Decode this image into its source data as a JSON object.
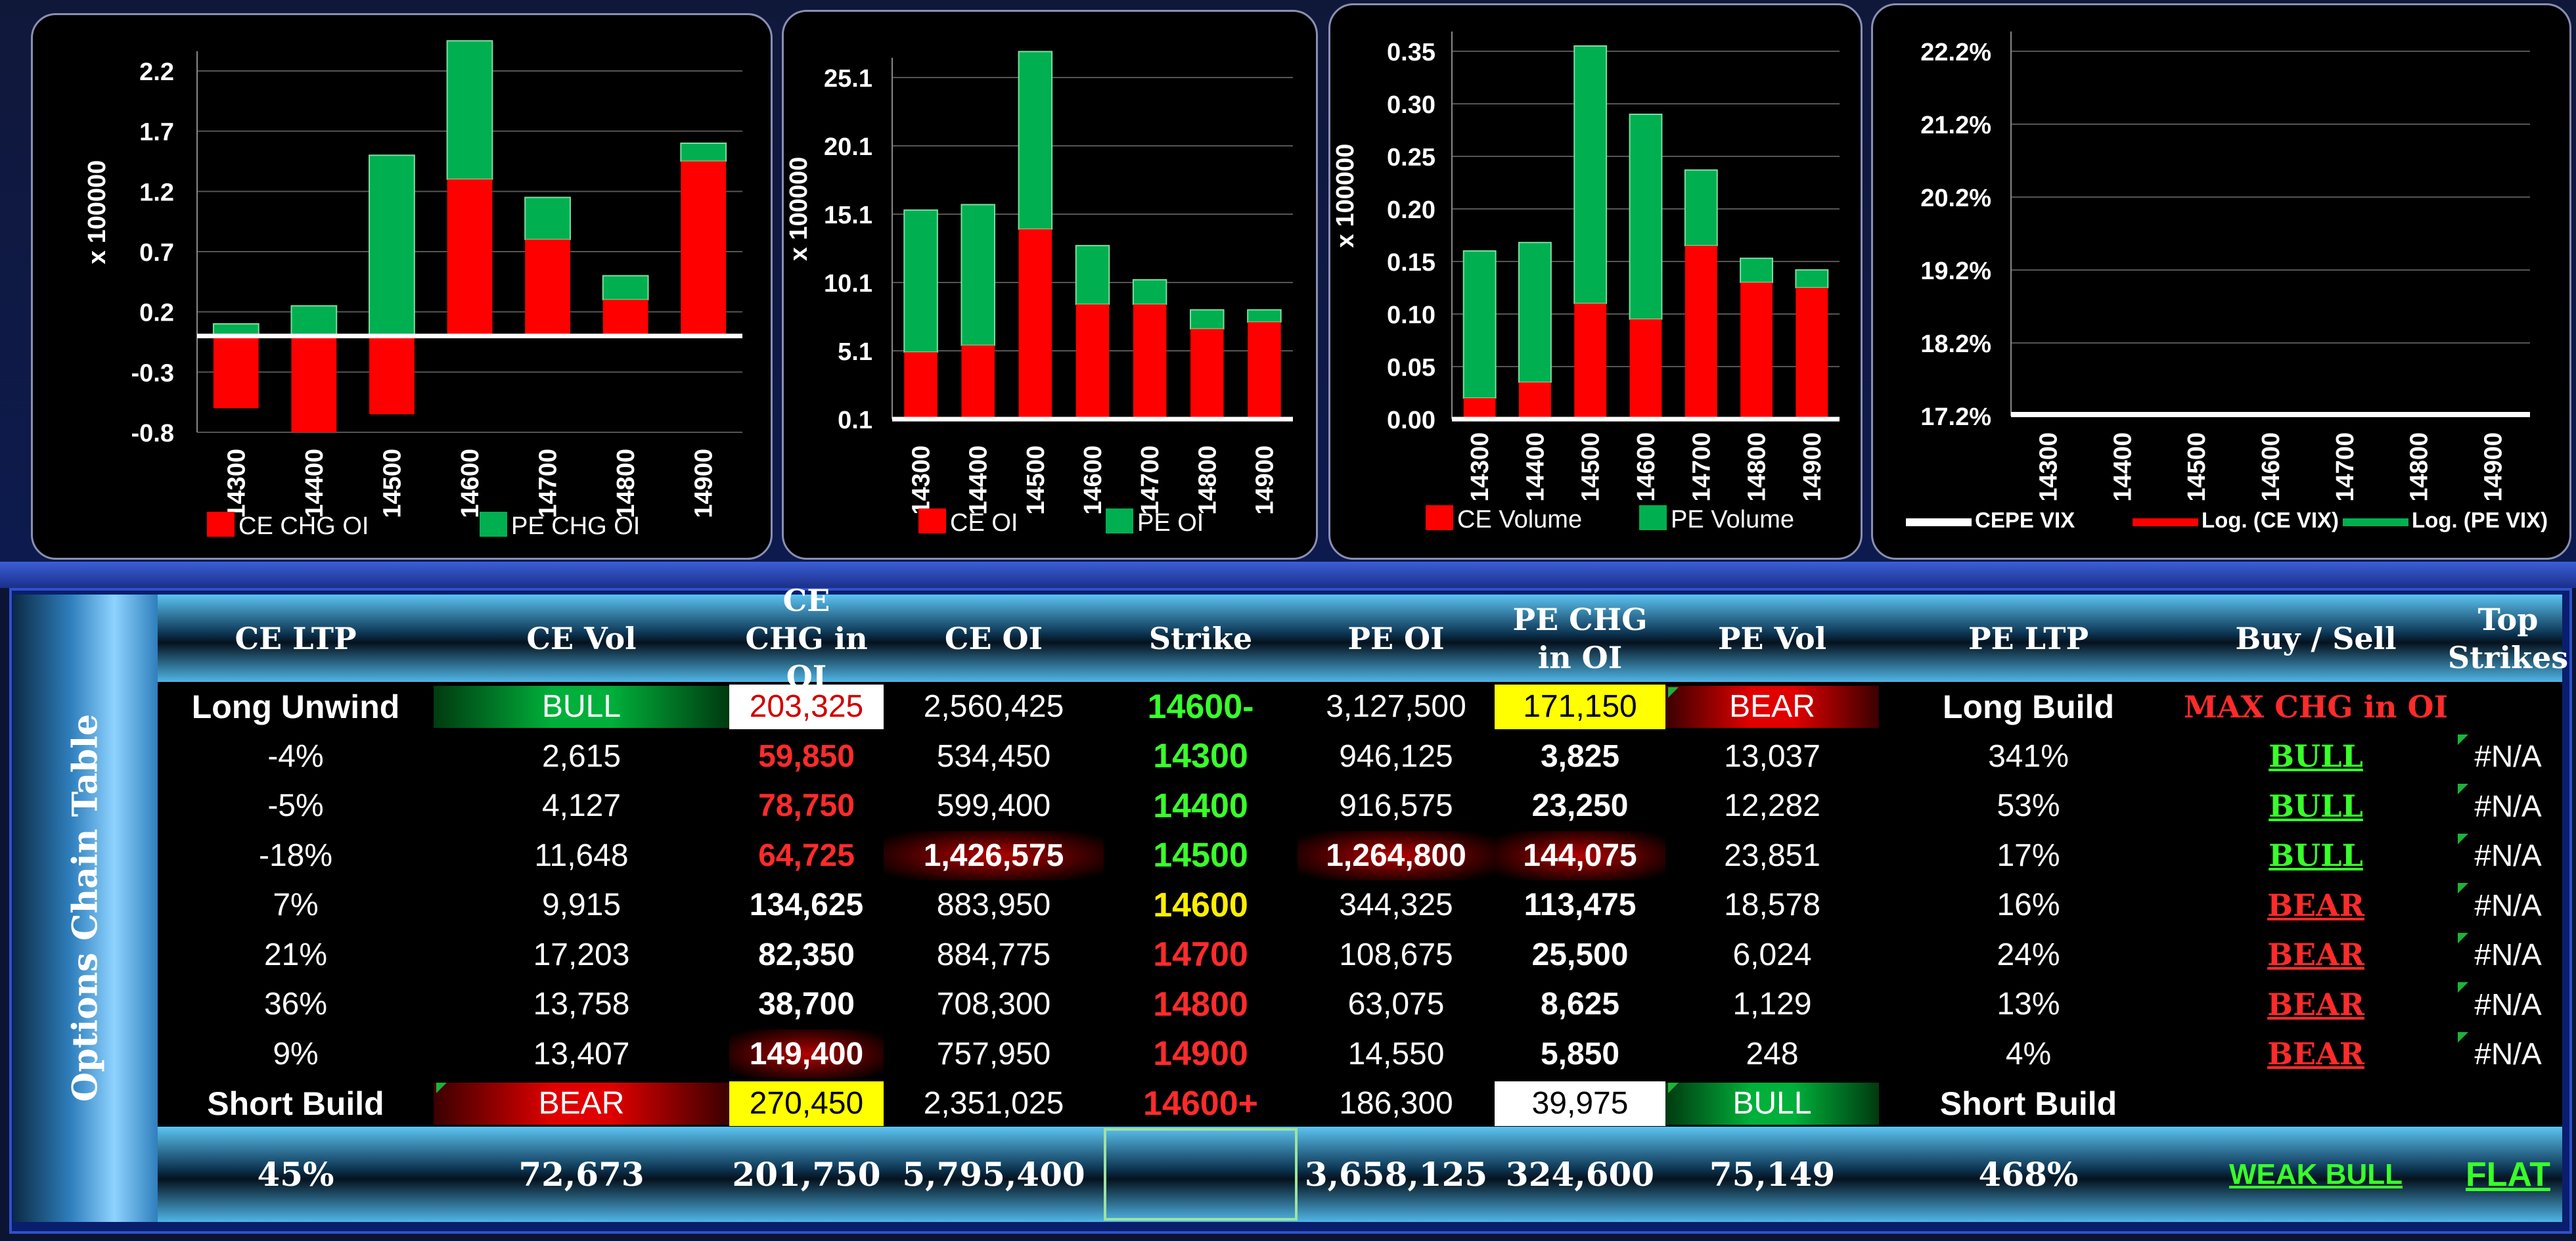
{
  "charts": [
    {
      "unit_label": "x 100000",
      "categories": [
        "14300",
        "14400",
        "14500",
        "14600",
        "14700",
        "14800",
        "14900"
      ],
      "yticks": [
        "2.2",
        "1.7",
        "1.2",
        "0.7",
        "0.2",
        "-0.3",
        "-0.8"
      ],
      "ylim": [
        -0.8,
        2.4
      ],
      "ce": [
        -0.6,
        -0.8,
        -0.65,
        1.3,
        0.8,
        0.3,
        1.45
      ],
      "pe": [
        0.1,
        0.25,
        1.5,
        2.45,
        1.15,
        0.5,
        1.6
      ],
      "legend": [
        "CE CHG OI",
        "PE CHG OI"
      ]
    },
    {
      "unit_label": "x 100000",
      "categories": [
        "14300",
        "14400",
        "14500",
        "14600",
        "14700",
        "14800",
        "14900"
      ],
      "yticks": [
        "25.1",
        "20.1",
        "15.1",
        "10.1",
        "5.1",
        "0.1"
      ],
      "ylim": [
        0.1,
        27.0
      ],
      "ce": [
        5.0,
        5.5,
        14.0,
        8.5,
        8.5,
        6.7,
        7.2
      ],
      "pe": [
        15.4,
        15.8,
        27.0,
        12.8,
        10.3,
        8.1,
        8.1
      ],
      "legend": [
        "CE OI",
        "PE OI"
      ]
    },
    {
      "unit_label": "x 100000",
      "categories": [
        "14300",
        "14400",
        "14500",
        "14600",
        "14700",
        "14800",
        "14900"
      ],
      "yticks": [
        "0.35",
        "0.30",
        "0.25",
        "0.20",
        "0.15",
        "0.10",
        "0.05",
        "0.00"
      ],
      "ylim": [
        0,
        0.35
      ],
      "ce": [
        0.02,
        0.035,
        0.11,
        0.095,
        0.165,
        0.13,
        0.125
      ],
      "pe": [
        0.16,
        0.168,
        0.355,
        0.29,
        0.237,
        0.153,
        0.142
      ],
      "legend": [
        "CE Volume",
        "PE Volume"
      ]
    },
    {
      "categories": [
        "14300",
        "14400",
        "14500",
        "14600",
        "14700",
        "14800",
        "14900"
      ],
      "yticks": [
        "22.2%",
        "21.2%",
        "20.2%",
        "19.2%",
        "18.2%",
        "17.2%"
      ],
      "legend": [
        "CEPE VIX",
        "Log. (CE VIX)",
        "Log. (PE VIX)"
      ]
    }
  ],
  "colors": {
    "ce": "#ff0000",
    "pe": "#00b050"
  },
  "table": {
    "side_title": "Options Chain Table",
    "headers": [
      "CE LTP",
      "CE Vol",
      "CE CHG in OI",
      "CE OI",
      "Strike",
      "PE OI",
      "PE CHG in OI",
      "PE Vol",
      "PE LTP",
      "Buy / Sell",
      "Top Strikes"
    ],
    "top_row": {
      "ce_ltp": "Long Unwind",
      "ce_vol": "BULL",
      "ce_chg": "203,325",
      "ce_oi": "2,560,425",
      "strike": "14600-",
      "pe_oi": "3,127,500",
      "pe_chg": "171,150",
      "pe_vol": "BEAR",
      "pe_ltp": "Long Build",
      "signal": "MAX CHG in OI"
    },
    "rows": [
      {
        "ce_ltp": "-4%",
        "ce_vol": "2,615",
        "ce_chg": "59,850",
        "ce_oi": "534,450",
        "strike": "14300",
        "pe_oi": "946,125",
        "pe_chg": "3,825",
        "pe_vol": "13,037",
        "pe_ltp": "341%",
        "signal": "BULL",
        "top": "#N/A"
      },
      {
        "ce_ltp": "-5%",
        "ce_vol": "4,127",
        "ce_chg": "78,750",
        "ce_oi": "599,400",
        "strike": "14400",
        "pe_oi": "916,575",
        "pe_chg": "23,250",
        "pe_vol": "12,282",
        "pe_ltp": "53%",
        "signal": "BULL",
        "top": "#N/A"
      },
      {
        "ce_ltp": "-18%",
        "ce_vol": "11,648",
        "ce_chg": "64,725",
        "ce_oi": "1,426,575",
        "strike": "14500",
        "pe_oi": "1,264,800",
        "pe_chg": "144,075",
        "pe_vol": "23,851",
        "pe_ltp": "17%",
        "signal": "BULL",
        "top": "#N/A"
      },
      {
        "ce_ltp": "7%",
        "ce_vol": "9,915",
        "ce_chg": "134,625",
        "ce_oi": "883,950",
        "strike": "14600",
        "pe_oi": "344,325",
        "pe_chg": "113,475",
        "pe_vol": "18,578",
        "pe_ltp": "16%",
        "signal": "BEAR",
        "top": "#N/A"
      },
      {
        "ce_ltp": "21%",
        "ce_vol": "17,203",
        "ce_chg": "82,350",
        "ce_oi": "884,775",
        "strike": "14700",
        "pe_oi": "108,675",
        "pe_chg": "25,500",
        "pe_vol": "6,024",
        "pe_ltp": "24%",
        "signal": "BEAR",
        "top": "#N/A"
      },
      {
        "ce_ltp": "36%",
        "ce_vol": "13,758",
        "ce_chg": "38,700",
        "ce_oi": "708,300",
        "strike": "14800",
        "pe_oi": "63,075",
        "pe_chg": "8,625",
        "pe_vol": "1,129",
        "pe_ltp": "13%",
        "signal": "BEAR",
        "top": "#N/A"
      },
      {
        "ce_ltp": "9%",
        "ce_vol": "13,407",
        "ce_chg": "149,400",
        "ce_oi": "757,950",
        "strike": "14900",
        "pe_oi": "14,550",
        "pe_chg": "5,850",
        "pe_vol": "248",
        "pe_ltp": "4%",
        "signal": "BEAR",
        "top": "#N/A"
      }
    ],
    "bottom_row": {
      "ce_ltp": "Short Build",
      "ce_vol": "BEAR",
      "ce_chg": "270,450",
      "ce_oi": "2,351,025",
      "strike": "14600+",
      "pe_oi": "186,300",
      "pe_chg": "39,975",
      "pe_vol": "BULL",
      "pe_ltp": "Short Build"
    },
    "totals": {
      "ce_ltp": "45%",
      "ce_vol": "72,673",
      "ce_chg": "201,750",
      "ce_oi": "5,795,400",
      "strike": "",
      "pe_oi": "3,658,125",
      "pe_chg": "324,600",
      "pe_vol": "75,149",
      "pe_ltp": "468%",
      "signal": "WEAK BULL",
      "top": "FLAT"
    }
  }
}
